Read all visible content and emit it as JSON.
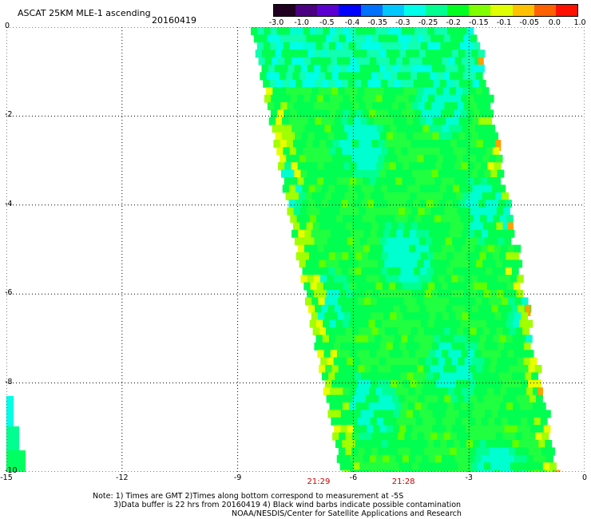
{
  "title": "ASCAT 25KM MLE-1 ascending",
  "date": "20160419",
  "colorbar": {
    "labels": [
      "-3.0",
      "-1.0",
      "-0.5",
      "-0.4",
      "-0.35",
      "-0.3",
      "-0.25",
      "-0.2",
      "-0.15",
      "-0.1",
      "-0.05",
      "0.0",
      "1.0"
    ],
    "colors": [
      "#200020",
      "#4a0080",
      "#5a00d0",
      "#0000ff",
      "#0070ff",
      "#00c8ff",
      "#00ffe8",
      "#00ff90",
      "#00ff20",
      "#80ff00",
      "#e0ff00",
      "#ffc000",
      "#ff6000",
      "#ff1000"
    ]
  },
  "map": {
    "x_ticks": [
      "-15",
      "-12",
      "-9",
      "-6",
      "-3",
      "0"
    ],
    "y_ticks": [
      "0",
      "-2",
      "-4",
      "-6",
      "-8",
      "-10"
    ],
    "xlim": [
      -15,
      0
    ],
    "ylim": [
      -10,
      0
    ],
    "grid": "dotted",
    "swath_color": "green dominant with cyan and yellow patches"
  },
  "times": [
    {
      "label": "21:29",
      "lon": -6.9
    },
    {
      "label": "21:28",
      "lon": -4.7
    }
  ],
  "notes": {
    "line1": "Note: 1) Times are GMT 2)Times along bottom correspond to measurement at -5S",
    "line2": "3)Data buffer is 22 hrs from 20160419 4) Black wind barbs indicate possible contamination",
    "line3": "NOAA/NESDIS/Center for Satellite Applications and Research"
  }
}
